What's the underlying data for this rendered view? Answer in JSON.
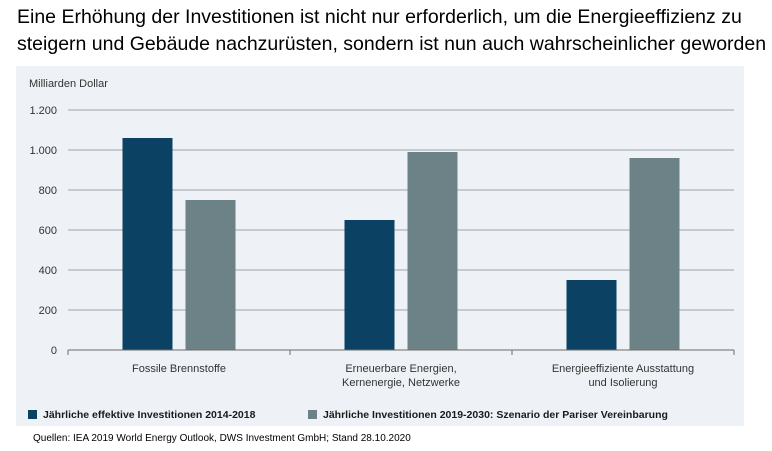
{
  "headline": "Eine Erhöhung der Investitionen ist nicht nur erforderlich, um die Energieeffizienz zu steigern und Gebäude nachzurüsten, sondern ist nun auch wahrscheinlicher geworden",
  "source": "Quellen:  IEA 2019 World Energy Outlook, DWS Investment GmbH; Stand 28.10.2020",
  "chart_data": {
    "type": "bar",
    "ylabel": "Milliarden Dollar",
    "ylim": [
      0,
      1200
    ],
    "yticks": [
      0,
      200,
      400,
      600,
      800,
      1000,
      1200
    ],
    "ytick_labels": [
      "0",
      "200",
      "400",
      "600",
      "800",
      "1.000",
      "1.200"
    ],
    "grid": true,
    "legend_position": "bottom",
    "categories": [
      [
        "Fossile Brennstoffe"
      ],
      [
        "Erneuerbare Energien,",
        "Kernenergie, Netzwerke"
      ],
      [
        "Energieeffiziente Ausstattung",
        "und Isolierung"
      ]
    ],
    "series": [
      {
        "name": "Jährliche effektive Investitionen 2014-2018",
        "color": "#0b4263",
        "values": [
          1060,
          650,
          350
        ]
      },
      {
        "name": "Jährliche Investitionen 2019-2030: Szenario der Pariser Vereinbarung",
        "color": "#6d8287",
        "values": [
          750,
          990,
          960
        ]
      }
    ]
  }
}
